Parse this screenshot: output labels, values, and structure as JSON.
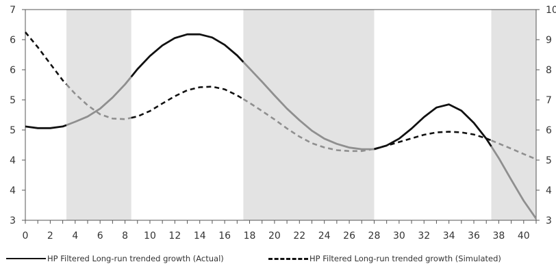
{
  "chart_data": {
    "type": "line",
    "title": "",
    "xlabel": "",
    "ylabel": "",
    "x_ticks": [
      "0",
      "2",
      "4",
      "6",
      "8",
      "10",
      "12",
      "14",
      "16",
      "18",
      "20",
      "22",
      "24",
      "26",
      "28",
      "30",
      "32",
      "34",
      "36",
      "38",
      "40"
    ],
    "xlim": [
      0,
      41
    ],
    "y_left": {
      "range": [
        3,
        7
      ],
      "tick_labels": [
        "3",
        "4",
        "4",
        "5",
        "5",
        "6",
        "6",
        "7"
      ]
    },
    "y_right": {
      "range": [
        3,
        10
      ],
      "tick_labels": [
        "3",
        "4",
        "5",
        "6",
        "7",
        "8",
        "9",
        "10"
      ]
    },
    "grid": false,
    "legend_position": "bottom",
    "shaded_regions": [
      [
        3.3,
        8.5
      ],
      [
        17.5,
        28
      ],
      [
        37.4,
        41
      ]
    ],
    "series": [
      {
        "name": "HP Filtered Long-run trended growth (Actual)",
        "axis": "left",
        "line_style": "solid",
        "points": [
          [
            0,
            4.78
          ],
          [
            1,
            4.75
          ],
          [
            2,
            4.75
          ],
          [
            3,
            4.78
          ],
          [
            4,
            4.87
          ],
          [
            5,
            4.97
          ],
          [
            6,
            5.12
          ],
          [
            7,
            5.33
          ],
          [
            8,
            5.58
          ],
          [
            9,
            5.87
          ],
          [
            10,
            6.12
          ],
          [
            11,
            6.32
          ],
          [
            12,
            6.46
          ],
          [
            13,
            6.53
          ],
          [
            14,
            6.53
          ],
          [
            15,
            6.47
          ],
          [
            16,
            6.33
          ],
          [
            17,
            6.13
          ],
          [
            18,
            5.88
          ],
          [
            19,
            5.63
          ],
          [
            20,
            5.37
          ],
          [
            21,
            5.12
          ],
          [
            22,
            4.9
          ],
          [
            23,
            4.7
          ],
          [
            24,
            4.55
          ],
          [
            25,
            4.45
          ],
          [
            26,
            4.38
          ],
          [
            27,
            4.35
          ],
          [
            28,
            4.35
          ],
          [
            29,
            4.42
          ],
          [
            30,
            4.55
          ],
          [
            31,
            4.74
          ],
          [
            32,
            4.96
          ],
          [
            33,
            5.14
          ],
          [
            34,
            5.2
          ],
          [
            35,
            5.08
          ],
          [
            36,
            4.85
          ],
          [
            37,
            4.55
          ],
          [
            38,
            4.18
          ],
          [
            39,
            3.77
          ],
          [
            40,
            3.37
          ],
          [
            41,
            3.03
          ]
        ]
      },
      {
        "name": "HP Filtered Long-run trended growth (Simulated)",
        "axis": "right",
        "line_style": "dashed",
        "points": [
          [
            0,
            9.25
          ],
          [
            1,
            8.75
          ],
          [
            2,
            8.2
          ],
          [
            3,
            7.65
          ],
          [
            4,
            7.2
          ],
          [
            5,
            6.82
          ],
          [
            6,
            6.52
          ],
          [
            7,
            6.38
          ],
          [
            8,
            6.36
          ],
          [
            9,
            6.45
          ],
          [
            10,
            6.63
          ],
          [
            11,
            6.88
          ],
          [
            12,
            7.12
          ],
          [
            13,
            7.32
          ],
          [
            14,
            7.42
          ],
          [
            15,
            7.44
          ],
          [
            16,
            7.35
          ],
          [
            17,
            7.15
          ],
          [
            18,
            6.9
          ],
          [
            19,
            6.63
          ],
          [
            20,
            6.35
          ],
          [
            21,
            6.05
          ],
          [
            22,
            5.78
          ],
          [
            23,
            5.56
          ],
          [
            24,
            5.42
          ],
          [
            25,
            5.33
          ],
          [
            26,
            5.3
          ],
          [
            27,
            5.3
          ],
          [
            28,
            5.37
          ],
          [
            29,
            5.48
          ],
          [
            30,
            5.6
          ],
          [
            31,
            5.72
          ],
          [
            32,
            5.84
          ],
          [
            33,
            5.92
          ],
          [
            34,
            5.94
          ],
          [
            35,
            5.92
          ],
          [
            36,
            5.85
          ],
          [
            37,
            5.72
          ],
          [
            38,
            5.55
          ],
          [
            39,
            5.38
          ],
          [
            40,
            5.2
          ],
          [
            41,
            5.03
          ]
        ]
      }
    ]
  }
}
